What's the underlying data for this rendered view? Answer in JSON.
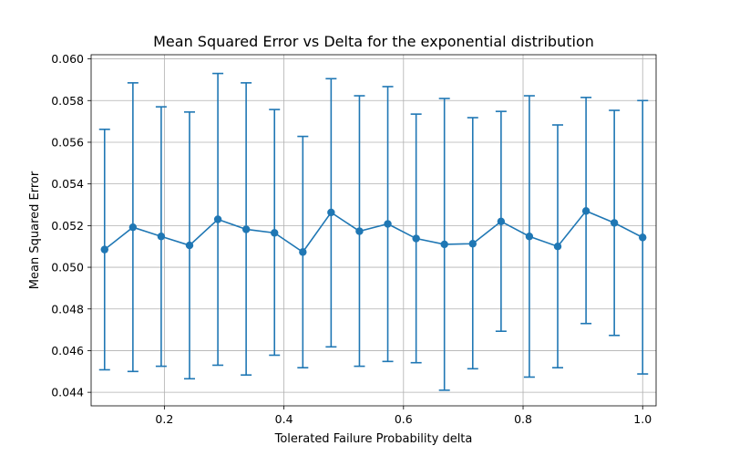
{
  "chart_data": {
    "type": "line",
    "title": "Mean Squared Error vs Delta for the exponential distribution",
    "xlabel": "Tolerated Failure Probability delta",
    "ylabel": "Mean Squared Error",
    "xlim": [
      0.0775,
      1.0225
    ],
    "ylim": [
      0.04335,
      0.0602
    ],
    "xticks": [
      0.2,
      0.4,
      0.6,
      0.8,
      1.0
    ],
    "xtick_labels": [
      "0.2",
      "0.4",
      "0.6",
      "0.8",
      "1.0"
    ],
    "yticks": [
      0.044,
      0.046,
      0.048,
      0.05,
      0.052,
      0.054,
      0.056,
      0.058,
      0.06
    ],
    "ytick_labels": [
      "0.044",
      "0.046",
      "0.048",
      "0.050",
      "0.052",
      "0.054",
      "0.056",
      "0.058",
      "0.060"
    ],
    "grid": true,
    "color": "#1f77b4",
    "series": [
      {
        "x": [
          0.1,
          0.1474,
          0.1947,
          0.2421,
          0.2895,
          0.3368,
          0.3842,
          0.4316,
          0.4789,
          0.5263,
          0.5737,
          0.6211,
          0.6684,
          0.7158,
          0.7632,
          0.8105,
          0.8579,
          0.9053,
          0.9526,
          1.0
        ],
        "y": [
          0.05085,
          0.05192,
          0.05148,
          0.05105,
          0.0523,
          0.05182,
          0.05165,
          0.05073,
          0.05263,
          0.05173,
          0.05208,
          0.05138,
          0.0511,
          0.05113,
          0.0522,
          0.05148,
          0.051,
          0.0527,
          0.05213,
          0.05143
        ],
        "yerr_low": [
          0.04508,
          0.045,
          0.04525,
          0.04465,
          0.0453,
          0.04483,
          0.04578,
          0.04518,
          0.04618,
          0.04525,
          0.04548,
          0.04542,
          0.0441,
          0.04513,
          0.04693,
          0.04473,
          0.04518,
          0.0473,
          0.04673,
          0.04488
        ],
        "yerr_high": [
          0.05662,
          0.05885,
          0.0577,
          0.05745,
          0.0593,
          0.05885,
          0.05757,
          0.05628,
          0.05905,
          0.05823,
          0.05867,
          0.05735,
          0.0581,
          0.05718,
          0.05748,
          0.05823,
          0.05683,
          0.05815,
          0.05753,
          0.058
        ]
      }
    ]
  }
}
